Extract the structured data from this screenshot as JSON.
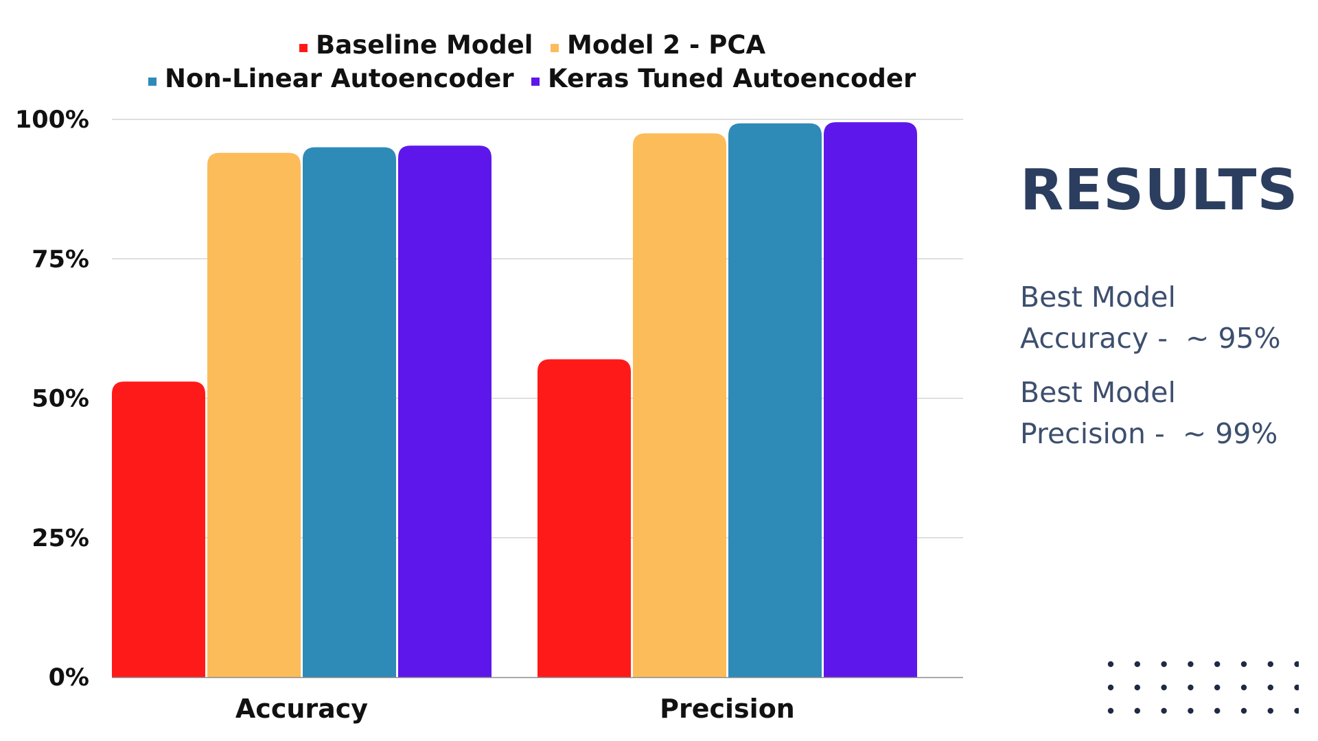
{
  "chart_data": {
    "type": "bar",
    "categories": [
      "Accuracy",
      "Precision"
    ],
    "series": [
      {
        "name": "Baseline Model",
        "color": "#ff1a1a",
        "values": [
          53,
          57
        ]
      },
      {
        "name": "Model 2 - PCA",
        "color": "#fcbc59",
        "values": [
          94,
          97.5
        ]
      },
      {
        "name": "Non-Linear Autoencoder",
        "color": "#2e8bb8",
        "values": [
          95,
          99.3
        ]
      },
      {
        "name": "Keras Tuned Autoencoder",
        "color": "#5e17eb",
        "values": [
          95.3,
          99.5
        ]
      }
    ],
    "ylim": [
      0,
      100
    ],
    "yticks": [
      0,
      25,
      50,
      75,
      100
    ],
    "ytick_labels": [
      "0%",
      "25%",
      "50%",
      "75%",
      "100%"
    ],
    "grid": true,
    "legend_position": "top",
    "title": "",
    "xlabel": "",
    "ylabel": ""
  },
  "side_panel": {
    "title": "RESULTS",
    "accuracy_text": "Best Model\nAccuracy -  ~ 95%",
    "precision_text": "Best Model\nPrecision -  ~ 99%",
    "title_color": "#2c3e5f",
    "text_color": "#3d4f6e"
  },
  "decoration": {
    "dot_color": "#1f2a44",
    "dot_rows": 3,
    "dot_cols": 8
  }
}
